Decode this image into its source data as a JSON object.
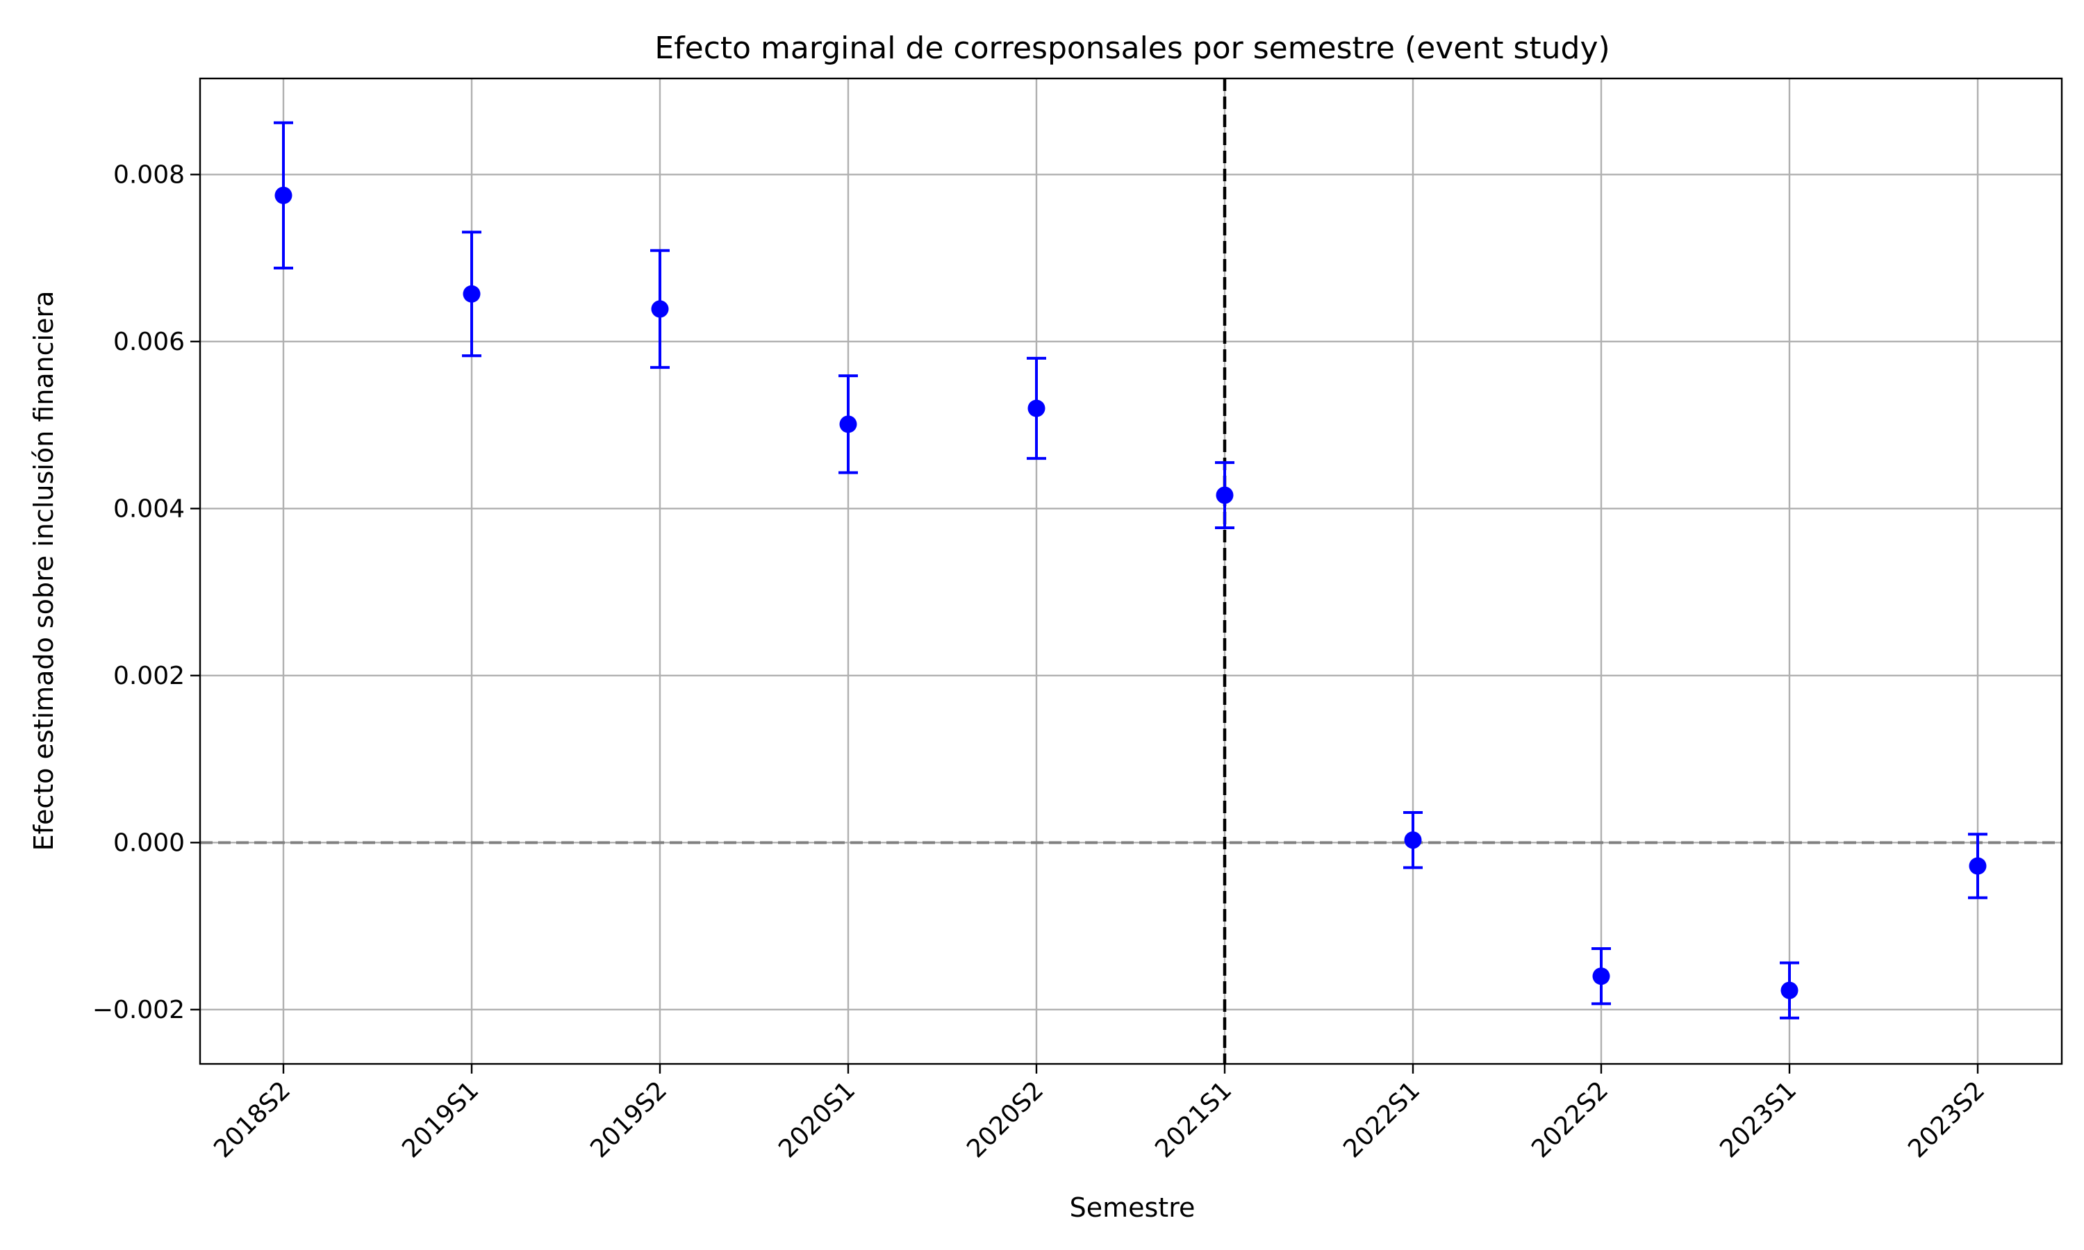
{
  "chart_data": {
    "type": "scatter",
    "title": "Efecto marginal de corresponsales por semestre (event study)",
    "xlabel": "Semestre",
    "ylabel": "Efecto estimado sobre inclusión financiera",
    "categories": [
      "2018S2",
      "2019S1",
      "2019S2",
      "2020S1",
      "2020S2",
      "2021S1",
      "2022S1",
      "2022S2",
      "2023S1",
      "2023S2"
    ],
    "series": [
      {
        "values": [
          0.00775,
          0.00657,
          0.00639,
          0.00501,
          0.0052,
          0.00416,
          3e-05,
          -0.0016,
          -0.00177,
          -0.00028
        ],
        "ci_lower": [
          0.00688,
          0.00583,
          0.00569,
          0.00443,
          0.0046,
          0.00377,
          -0.0003,
          -0.00193,
          -0.0021,
          -0.00066
        ],
        "ci_upper": [
          0.00862,
          0.00731,
          0.00709,
          0.00559,
          0.0058,
          0.00455,
          0.00036,
          -0.00127,
          -0.00144,
          0.0001
        ],
        "color": "#0000ff"
      }
    ],
    "ylim": [
      -0.00265,
      0.00915
    ],
    "yticks": [
      -0.002,
      0.0,
      0.002,
      0.004,
      0.006,
      0.008
    ],
    "ytick_labels": [
      "−0.002",
      "0.000",
      "0.002",
      "0.004",
      "0.006",
      "0.008"
    ],
    "grid": true,
    "reference_lines": [
      {
        "orientation": "horizontal",
        "value": 0.0,
        "style": "dashed",
        "color": "#808080"
      },
      {
        "orientation": "vertical",
        "category": "2021S1",
        "style": "dashed",
        "color": "#000000"
      }
    ]
  }
}
